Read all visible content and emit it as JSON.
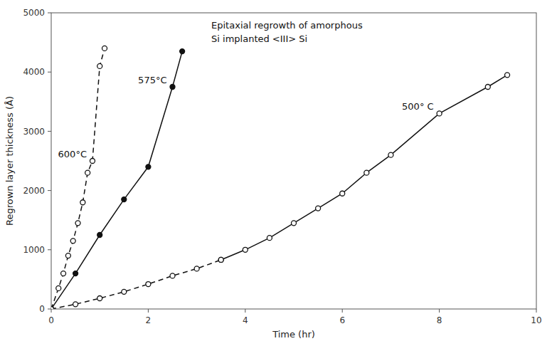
{
  "chart_data": {
    "type": "line",
    "annotations": [
      "Epitaxial regrowth of amorphous",
      "Si implanted <III> Si"
    ],
    "x_label": "Time (hr)",
    "y_label": "Regrown layer thickness (Å)",
    "xlim": [
      0,
      10
    ],
    "ylim": [
      0,
      5000
    ],
    "xticks": [
      0,
      2,
      4,
      6,
      8,
      10
    ],
    "yticks": [
      0,
      1000,
      2000,
      3000,
      4000,
      5000
    ],
    "grid": false,
    "series": [
      {
        "name": "600°C",
        "color": "#111111",
        "line_style": "dashed",
        "marker": "open-circle",
        "x": [
          0.0,
          0.15,
          0.25,
          0.35,
          0.45,
          0.55,
          0.65,
          0.75,
          0.85,
          1.0,
          1.1
        ],
        "values": [
          0,
          350,
          600,
          900,
          1150,
          1450,
          1800,
          2300,
          2500,
          4100,
          4400
        ]
      },
      {
        "name": "575°C",
        "color": "#111111",
        "line_style": "solid",
        "marker": "circle",
        "x": [
          0.0,
          0.5,
          1.0,
          1.5,
          2.0,
          2.5,
          2.7
        ],
        "values": [
          0,
          600,
          1250,
          1850,
          2400,
          3750,
          4350
        ]
      },
      {
        "color": "#111111",
        "line_style": "dashed",
        "marker": "open-circle",
        "x": [
          0.0,
          0.5,
          1.0,
          1.5,
          2.0,
          2.5,
          3.0,
          3.5
        ],
        "values": [
          0,
          80,
          180,
          290,
          420,
          560,
          680,
          830
        ]
      },
      {
        "name": "500° C",
        "color": "#111111",
        "line_style": "solid",
        "marker": "open-circle",
        "x": [
          3.5,
          4.0,
          4.5,
          5.0,
          5.5,
          6.0,
          6.5,
          7.0,
          8.0,
          9.0,
          9.4
        ],
        "values": [
          830,
          1000,
          1200,
          1450,
          1700,
          1950,
          2300,
          2600,
          3300,
          3750,
          3950
        ]
      }
    ]
  }
}
